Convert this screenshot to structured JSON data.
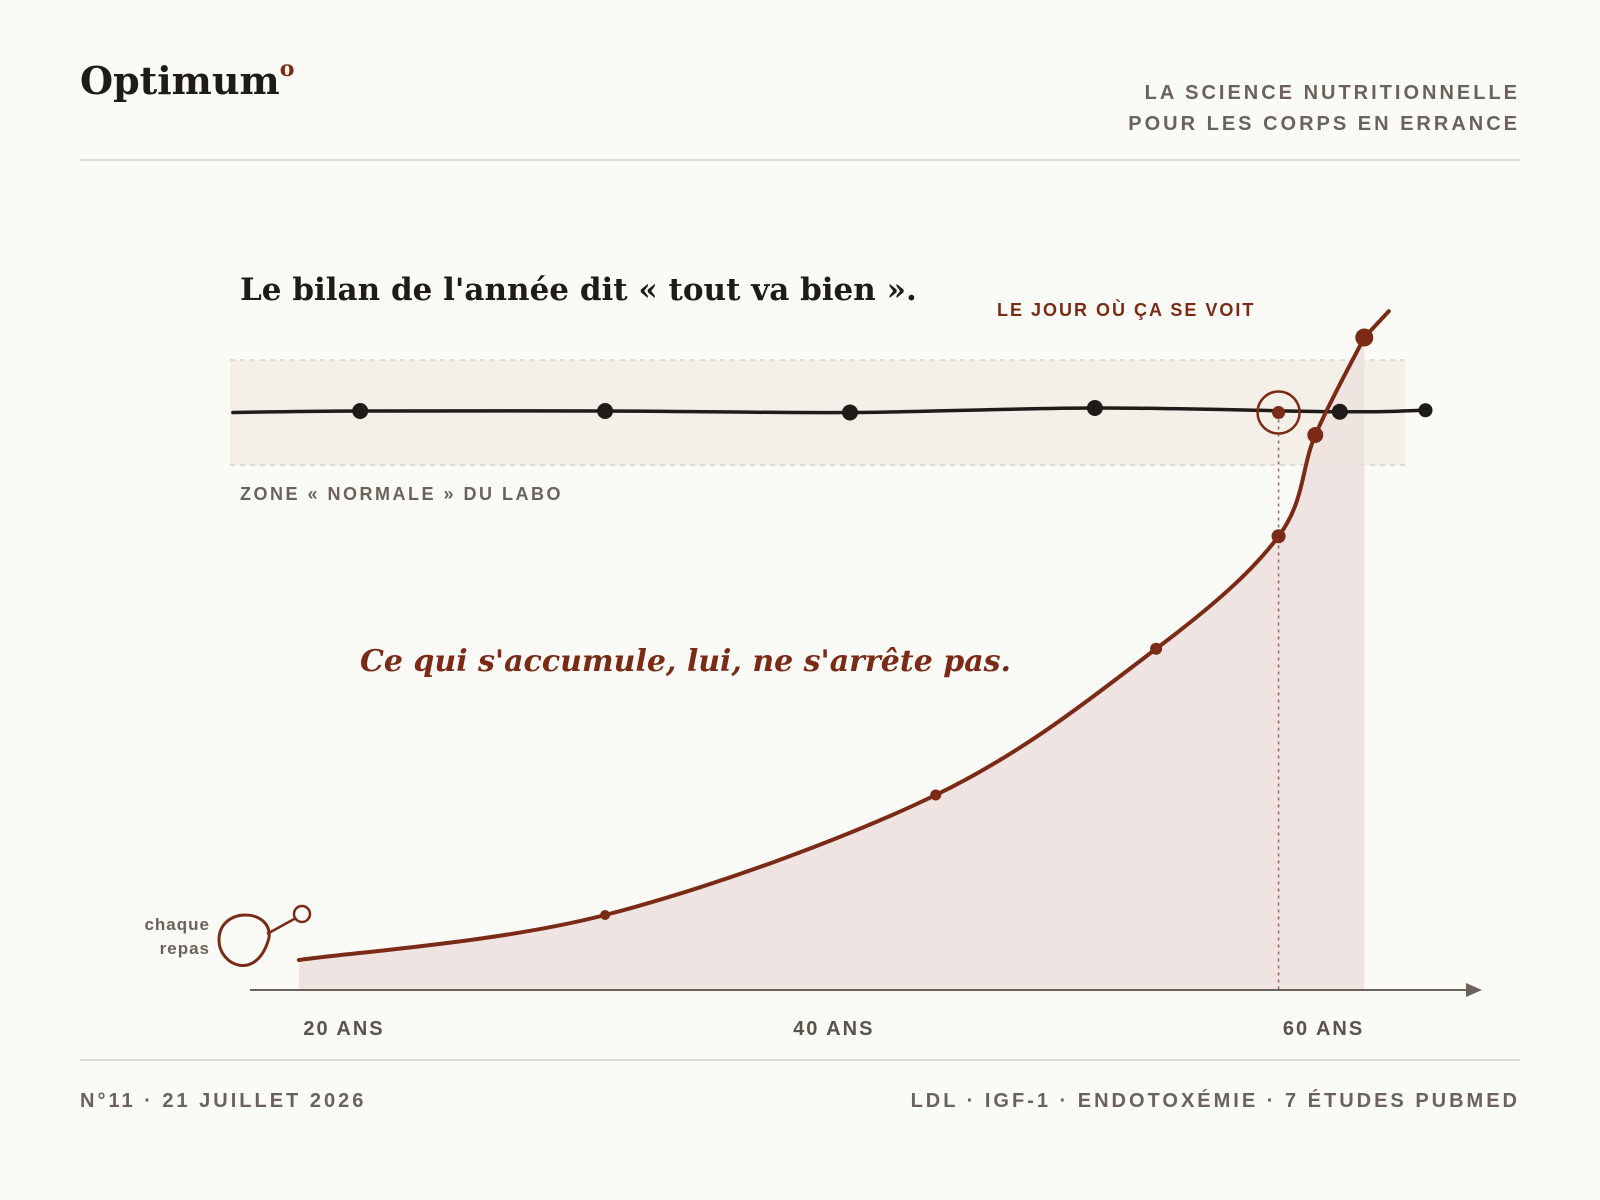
{
  "header": {
    "brand": "Optimum",
    "brand_mark": "o",
    "tagline_line1": "LA SCIENCE NUTRITIONNELLE",
    "tagline_line2": "POUR LES CORPS EN ERRANCE"
  },
  "footer": {
    "issue": "N°11 · 21 JUILLET 2026",
    "topics": "LDL · IGF-1 · ENDOTOXÉMIE · 7 ÉTUDES PUBMED"
  },
  "colors": {
    "accent": "#7a2a15",
    "ink": "#1e1b18",
    "muted": "#6b635b",
    "band": "#f4efe7",
    "area": "#efe3e0"
  },
  "chart_data": {
    "type": "line",
    "title": "Le bilan de l'année dit « tout va bien ».",
    "subtitle": "Ce qui s'accumule, lui, ne s'arrête pas.",
    "xlabel": "",
    "ylabel": "",
    "x_ticks": [
      {
        "value": 20,
        "label": "20 ANS"
      },
      {
        "value": 40,
        "label": "40 ANS"
      },
      {
        "value": 60,
        "label": "60 ANS"
      }
    ],
    "xlim": [
      18,
      67
    ],
    "ylim": [
      0,
      100
    ],
    "grid": false,
    "normal_zone": {
      "label": "ZONE « NORMALE » DU LABO",
      "range": [
        70,
        84
      ]
    },
    "series": [
      {
        "role": "bilan",
        "style": "line",
        "x": [
          17.3,
          22.5,
          32.5,
          42.5,
          52.5,
          62.5,
          66
        ],
        "y": [
          77,
          77.2,
          77.2,
          77,
          77.6,
          77.1,
          77.3
        ]
      },
      {
        "role": "accumulation",
        "style": "area",
        "x": [
          20,
          32.5,
          46,
          55,
          60,
          61.5,
          63.5
        ],
        "y": [
          4,
          10,
          26,
          45.5,
          60.5,
          74,
          87
        ]
      }
    ],
    "annotations": [
      {
        "text": "LE JOUR OÙ ÇA SE VOIT",
        "x": 60,
        "y": 77
      },
      {
        "text": "chaque repas",
        "x": 20,
        "y": 4
      }
    ]
  }
}
